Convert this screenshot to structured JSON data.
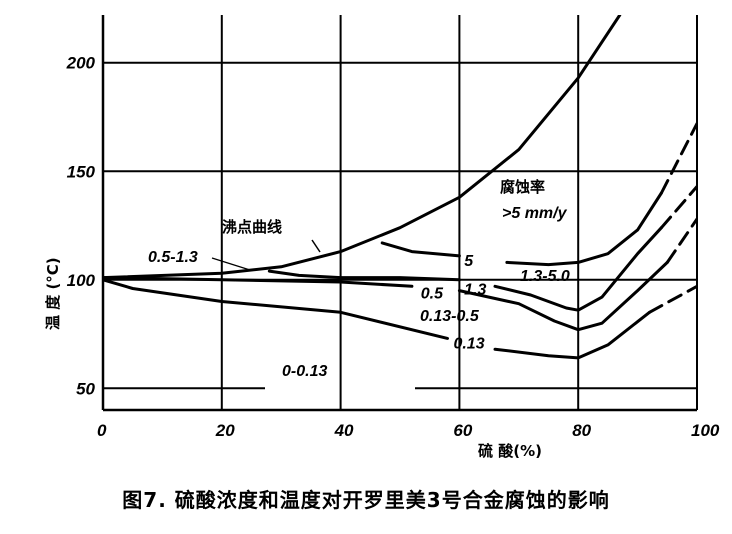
{
  "caption": "图7.   硫酸浓度和温度对开罗里美3号合金腐蚀的影响",
  "chart_data": {
    "type": "line",
    "title": "",
    "xlabel": "硫 酸(%)",
    "ylabel": "温 度 (°C)",
    "xlim": [
      0,
      100
    ],
    "ylim": [
      40,
      222
    ],
    "x_ticks": [
      "0",
      "20",
      "40",
      "60",
      "80",
      "100"
    ],
    "y_ticks": [
      "50",
      "100",
      "150",
      "200"
    ],
    "grid": true,
    "annotations": {
      "boiling_curve": "沸点曲线",
      "high_rate_region": "腐蚀率",
      "high_rate_value": ">5 mm/y",
      "region_0_5_1_3": "0.5-1.3",
      "region_1_3_5_0": "1.3-5.0",
      "region_0_13_0_5": "0.13-0.5",
      "region_0_0_13": "0-0.13"
    },
    "series": [
      {
        "name": "沸点曲线",
        "segments": [
          {
            "style": "solid",
            "points": [
              [
                0,
                101
              ],
              [
                20,
                103
              ],
              [
                30,
                106
              ],
              [
                40,
                113
              ],
              [
                50,
                124
              ],
              [
                60,
                138
              ],
              [
                70,
                160
              ],
              [
                80,
                193
              ],
              [
                87,
                222
              ]
            ]
          }
        ]
      },
      {
        "name": "5",
        "segments": [
          {
            "style": "solid",
            "points": [
              [
                47,
                117
              ],
              [
                52,
                113
              ],
              [
                60,
                111
              ]
            ]
          },
          {
            "style": "solid",
            "points": [
              [
                68,
                108
              ],
              [
                75,
                107
              ],
              [
                80,
                108
              ],
              [
                85,
                112
              ],
              [
                90,
                123
              ],
              [
                94,
                140
              ]
            ]
          },
          {
            "style": "dashed",
            "points": [
              [
                94,
                140
              ],
              [
                100,
                172
              ]
            ]
          }
        ]
      },
      {
        "name": "1.3",
        "segments": [
          {
            "style": "solid",
            "points": [
              [
                28,
                104
              ],
              [
                33,
                102
              ],
              [
                40,
                101
              ],
              [
                50,
                101
              ],
              [
                60,
                100
              ]
            ]
          },
          {
            "style": "solid",
            "points": [
              [
                66,
                97
              ],
              [
                72,
                93
              ],
              [
                78,
                87
              ],
              [
                80,
                86
              ],
              [
                84,
                92
              ],
              [
                90,
                112
              ],
              [
                94,
                124
              ]
            ]
          },
          {
            "style": "dashed",
            "points": [
              [
                94,
                124
              ],
              [
                100,
                143
              ]
            ]
          }
        ]
      },
      {
        "name": "0.5",
        "segments": [
          {
            "style": "solid",
            "points": [
              [
                0,
                101
              ],
              [
                20,
                100
              ],
              [
                40,
                99
              ],
              [
                52,
                97
              ]
            ]
          },
          {
            "style": "solid",
            "points": [
              [
                60,
                95
              ],
              [
                70,
                89
              ],
              [
                76,
                81
              ],
              [
                80,
                77
              ],
              [
                84,
                80
              ],
              [
                90,
                95
              ],
              [
                95,
                108
              ]
            ]
          },
          {
            "style": "dashed",
            "points": [
              [
                95,
                108
              ],
              [
                100,
                128
              ]
            ]
          }
        ]
      },
      {
        "name": "0.13",
        "segments": [
          {
            "style": "solid",
            "points": [
              [
                0,
                100
              ],
              [
                5,
                96
              ],
              [
                20,
                90
              ],
              [
                40,
                85
              ],
              [
                58,
                73
              ]
            ]
          },
          {
            "style": "solid",
            "points": [
              [
                66,
                68
              ],
              [
                75,
                65
              ],
              [
                80,
                64
              ],
              [
                85,
                70
              ],
              [
                92,
                85
              ]
            ]
          },
          {
            "style": "dashed",
            "points": [
              [
                92,
                85
              ],
              [
                100,
                97
              ]
            ]
          }
        ]
      }
    ]
  }
}
